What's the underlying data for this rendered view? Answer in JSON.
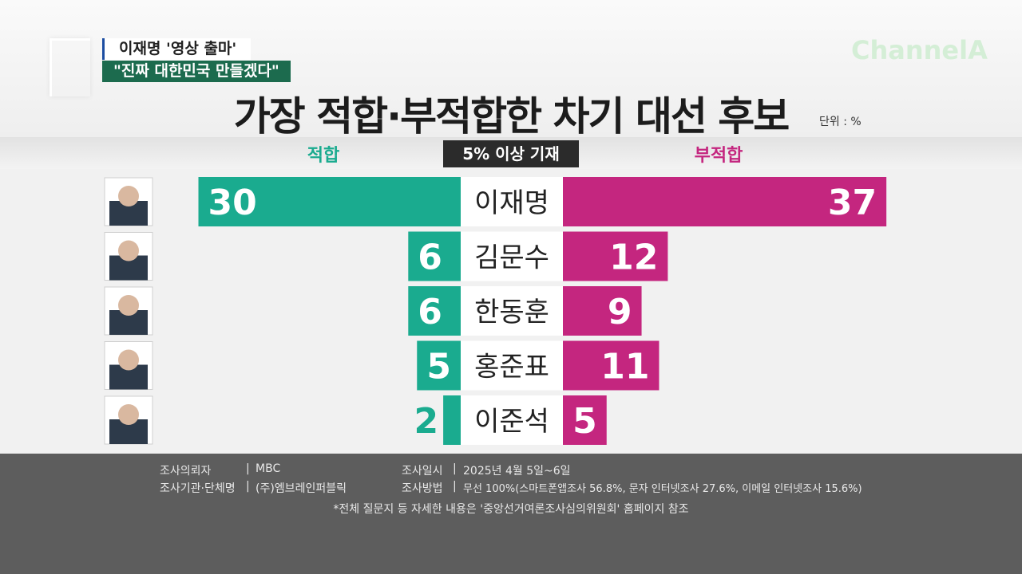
{
  "header": {
    "headline_1": "이재명 '영상 출마'",
    "headline_2": "\"진짜 대한민국 만들겠다\"",
    "channel_logo": "ChannelA",
    "title": "가장 적합·부적합한 차기 대선 후보",
    "unit": "단위 : %"
  },
  "columns": {
    "left": "적합",
    "center": "5% 이상 기재",
    "right": "부적합"
  },
  "colors": {
    "suitable": "#1aab8f",
    "unsuitable": "#c4267f",
    "name_bg": "#ffffff",
    "footer_bg": "#5d5d5d"
  },
  "chart_data": {
    "type": "bar",
    "title": "가장 적합·부적합한 차기 대선 후보",
    "unit": "단위 : %",
    "categories": [
      "이재명",
      "김문수",
      "한동훈",
      "홍준표",
      "이준석"
    ],
    "series": [
      {
        "name": "적합",
        "values": [
          30,
          6,
          6,
          5,
          2
        ]
      },
      {
        "name": "부적합",
        "values": [
          37,
          12,
          9,
          11,
          5
        ]
      }
    ]
  },
  "footer": {
    "client_label": "조사의뢰자",
    "client_value": "MBC",
    "agency_label": "조사기관·단체명",
    "agency_value": "(주)엠브레인퍼블릭",
    "date_label": "조사일시",
    "date_value": "2025년 4월 5일~6일",
    "method_label": "조사방법",
    "method_value": "무선 100%(스마트폰앱조사 56.8%, 문자 인터넷조사 27.6%, 이메일 인터넷조사 15.6%)",
    "note": "*전체 질문지 등 자세한 내용은 '중앙선거여론조사심의위원회' 홈페이지 참조"
  }
}
